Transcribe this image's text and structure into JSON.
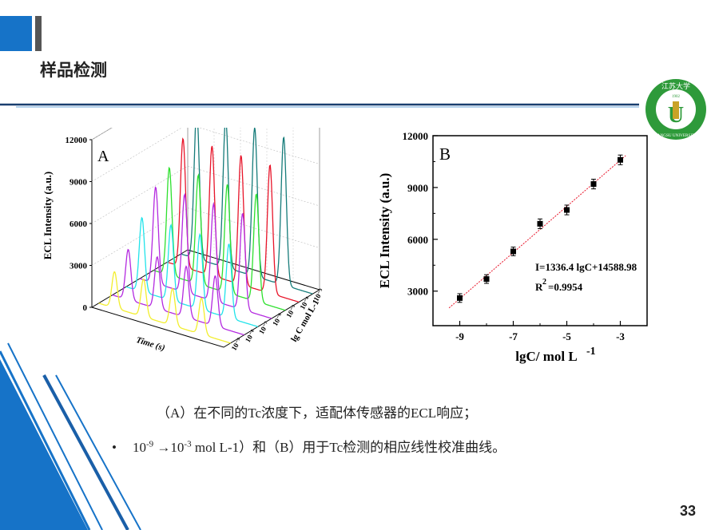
{
  "slide": {
    "title": "样品检测",
    "page_number": "33",
    "caption_a": "（A）在不同的Tc浓度下，适配体传感器的ECL响应；",
    "caption_b": {
      "base1": "10",
      "exp1": "-9",
      "arrow": " →",
      "base2": "10",
      "exp2": "-3",
      "rest": " mol L-1）和（B）用于Tc检测的相应线性校准曲线。"
    }
  },
  "logo": {
    "top_text": "江苏大学",
    "year": "1902",
    "ring_text": "JIANGSU UNIVERSITY",
    "letter": "U",
    "colors": {
      "green": "#2e9a3a",
      "gold": "#c9a227"
    }
  },
  "chart_data": [
    {
      "type": "line",
      "panel_label": "A",
      "ylabel": "ECL Intensity (a.u.)",
      "xlabel": "Time (s)",
      "zlabel": "lg C mol L-1",
      "z_ticks": [
        "10⁻⁹",
        "10⁻⁸",
        "10⁻⁷",
        "10⁻⁶",
        "10⁻⁵",
        "10⁻⁴",
        "10⁻³"
      ],
      "yticks": [
        "0",
        "3000",
        "6000",
        "9000",
        "12000"
      ],
      "ylim": [
        0,
        12000
      ],
      "series": [
        {
          "z": "10⁻⁹",
          "color": "#f2ee2e",
          "peaks": [
            2600,
            2700,
            2650,
            2600
          ]
        },
        {
          "z": "10⁻⁸",
          "color": "#b42ae0",
          "peaks": [
            3600,
            3700,
            3650,
            3600
          ]
        },
        {
          "z": "10⁻⁷",
          "color": "#21e3ea",
          "peaks": [
            5300,
            5400,
            5350,
            5300
          ]
        },
        {
          "z": "10⁻⁶",
          "color": "#b42ae0",
          "peaks": [
            6900,
            7000,
            6950,
            6900
          ]
        },
        {
          "z": "10⁻⁵",
          "color": "#2ee02e",
          "peaks": [
            7700,
            7800,
            7750,
            7700
          ]
        },
        {
          "z": "10⁻⁴",
          "color": "#e8152a",
          "peaks": [
            9200,
            9300,
            9250,
            9200
          ]
        },
        {
          "z": "10⁻³",
          "color": "#167c7a",
          "peaks": [
            10600,
            10700,
            10650,
            10600
          ]
        }
      ]
    },
    {
      "type": "scatter",
      "panel_label": "B",
      "xlabel": "lgC/ mol L",
      "xlabel_sup": "-1",
      "ylabel": "ECL Intensity (a.u.)",
      "xlim": [
        -10,
        -2
      ],
      "ylim": [
        1000,
        12000
      ],
      "xticks": [
        -9,
        -7,
        -5,
        -3
      ],
      "yticks": [
        3000,
        6000,
        9000,
        12000
      ],
      "x": [
        -9,
        -8,
        -7,
        -6,
        -5,
        -4,
        -3
      ],
      "y": [
        2600,
        3700,
        5300,
        6900,
        7700,
        9200,
        10600
      ],
      "err": [
        250,
        250,
        250,
        280,
        280,
        280,
        280
      ],
      "fit": {
        "slope": 1336.4,
        "intercept": 14588.98,
        "color": "#e8152a"
      },
      "equation": "I=1336.4 lgC+14588.98",
      "r2_label": "R",
      "r2_sup": "2",
      "r2_value": "=0.9954"
    }
  ]
}
